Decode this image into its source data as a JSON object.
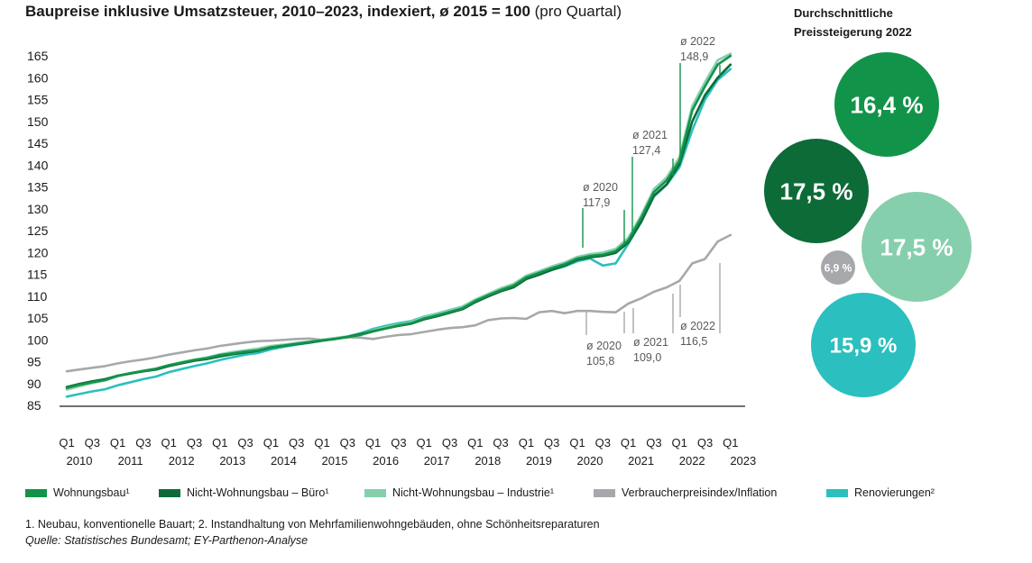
{
  "header": {
    "title_bold": "Baupreise inklusive Umsatzsteuer, 2010–2023, indexiert, ø 2015 = 100",
    "title_normal": "(pro Quartal)"
  },
  "side_panel": {
    "title_line1": "Durchschnittliche",
    "title_line2": "Preissteigerung 2022",
    "bubbles": [
      {
        "label": "16,4 %",
        "value": 16.4,
        "color": "#12934a"
      },
      {
        "label": "17,5 %",
        "value": 17.5,
        "color": "#0d6b38"
      },
      {
        "label": "17,5 %",
        "value": 17.5,
        "color": "#86cfac"
      },
      {
        "label": "6,9 %",
        "value": 6.9,
        "color": "#a6a8ab"
      },
      {
        "label": "15,9 %",
        "value": 15.9,
        "color": "#2bbfbf"
      }
    ]
  },
  "chart_data": {
    "type": "line",
    "y_ticks": [
      85,
      90,
      95,
      100,
      105,
      110,
      115,
      120,
      125,
      130,
      135,
      140,
      145,
      150,
      155,
      160,
      165
    ],
    "ylim": [
      85,
      165
    ],
    "x_quarter_labels": [
      "Q1",
      "Q3",
      "Q1",
      "Q3",
      "Q1",
      "Q3",
      "Q1",
      "Q3",
      "Q1",
      "Q3",
      "Q1",
      "Q3",
      "Q1",
      "Q3",
      "Q1",
      "Q3",
      "Q1",
      "Q3",
      "Q1",
      "Q3",
      "Q1",
      "Q3",
      "Q1",
      "Q3",
      "Q1",
      "Q3",
      "Q1"
    ],
    "x_year_labels": [
      "2010",
      "2011",
      "2012",
      "2013",
      "2014",
      "2015",
      "2016",
      "2017",
      "2018",
      "2019",
      "2020",
      "2021",
      "2022",
      "2023"
    ],
    "grid": false,
    "series": [
      {
        "name": "Wohnungsbau¹",
        "color": "#12934a",
        "values": [
          89.0,
          89.7,
          90.3,
          90.8,
          91.8,
          92.4,
          92.9,
          93.4,
          94.2,
          94.8,
          95.4,
          95.8,
          96.5,
          96.9,
          97.3,
          97.6,
          98.3,
          98.7,
          99.1,
          99.5,
          99.9,
          100.2,
          100.6,
          101.1,
          101.9,
          102.6,
          103.3,
          103.8,
          104.9,
          105.6,
          106.4,
          107.2,
          108.9,
          110.2,
          111.4,
          112.4,
          114.3,
          115.3,
          116.4,
          117.3,
          118.6,
          119.2,
          119.5,
          120.3,
          122.8,
          127.9,
          133.8,
          136.5,
          141.0,
          152.5,
          158.0,
          163.0,
          165.0
        ]
      },
      {
        "name": "Nicht-Wohnungsbau – Büro¹",
        "color": "#0d6b38",
        "values": [
          89.2,
          89.9,
          90.5,
          91.0,
          91.8,
          92.3,
          92.8,
          93.2,
          94.0,
          94.6,
          95.2,
          95.6,
          96.2,
          96.7,
          97.1,
          97.5,
          98.2,
          98.6,
          99.0,
          99.4,
          99.8,
          100.2,
          100.7,
          101.3,
          102.0,
          102.6,
          103.2,
          103.7,
          104.7,
          105.4,
          106.2,
          107.0,
          108.6,
          109.9,
          111.1,
          112.0,
          113.9,
          114.9,
          116.0,
          117.0,
          118.3,
          118.9,
          119.2,
          119.9,
          122.3,
          127.0,
          133.0,
          135.6,
          140.2,
          150.0,
          156.0,
          160.0,
          163.0
        ]
      },
      {
        "name": "Nicht-Wohnungsbau – Industrie¹",
        "color": "#86cfac",
        "values": [
          88.6,
          89.4,
          90.1,
          90.7,
          91.6,
          92.3,
          92.9,
          93.4,
          94.2,
          94.9,
          95.5,
          96.0,
          96.7,
          97.2,
          97.6,
          98.0,
          98.6,
          98.9,
          99.3,
          99.6,
          100.0,
          100.4,
          100.8,
          101.3,
          102.2,
          102.9,
          103.5,
          104.1,
          105.2,
          105.9,
          106.7,
          107.5,
          109.2,
          110.5,
          111.8,
          112.8,
          114.7,
          115.7,
          116.8,
          117.7,
          119.0,
          119.6,
          120.0,
          120.8,
          123.4,
          128.5,
          134.5,
          137.2,
          141.8,
          153.5,
          159.0,
          164.0,
          165.5
        ]
      },
      {
        "name": "Verbraucherpreisindex/Inflation",
        "color": "#a6a8ab",
        "values": [
          92.8,
          93.2,
          93.6,
          94.0,
          94.6,
          95.1,
          95.5,
          96.0,
          96.6,
          97.1,
          97.6,
          98.0,
          98.6,
          99.0,
          99.4,
          99.7,
          99.8,
          100.0,
          100.2,
          100.3,
          100.0,
          100.4,
          100.6,
          100.5,
          100.2,
          100.7,
          101.1,
          101.3,
          101.8,
          102.3,
          102.7,
          102.9,
          103.3,
          104.5,
          104.9,
          105.0,
          104.8,
          106.3,
          106.6,
          106.1,
          106.6,
          106.6,
          106.4,
          106.3,
          108.3,
          109.5,
          111.0,
          112.0,
          113.5,
          117.5,
          118.5,
          122.5,
          124.0
        ]
      },
      {
        "name": "Renovierungen²",
        "color": "#2bbfbf",
        "values": [
          87.0,
          87.6,
          88.2,
          88.7,
          89.6,
          90.3,
          91.0,
          91.6,
          92.6,
          93.3,
          94.0,
          94.6,
          95.4,
          96.0,
          96.6,
          97.0,
          97.8,
          98.4,
          98.9,
          99.3,
          99.8,
          100.2,
          100.8,
          101.5,
          102.5,
          103.2,
          103.8,
          104.3,
          105.3,
          106.0,
          106.8,
          107.6,
          109.2,
          110.4,
          111.6,
          112.5,
          114.2,
          115.1,
          116.0,
          116.8,
          118.0,
          118.6,
          117.0,
          117.5,
          122.0,
          127.0,
          132.8,
          135.5,
          139.5,
          148.0,
          155.0,
          159.5,
          162.0
        ]
      }
    ],
    "annotations_top": [
      {
        "line1": "ø 2020",
        "line2": "117,9"
      },
      {
        "line1": "ø 2021",
        "line2": "127,4"
      },
      {
        "line1": "ø 2022",
        "line2": "148,9"
      }
    ],
    "annotations_bottom": [
      {
        "line1": "ø 2020",
        "line2": "105,8"
      },
      {
        "line1": "ø 2021",
        "line2": "109,0"
      },
      {
        "line1": "ø 2022",
        "line2": "116,5"
      }
    ]
  },
  "legend": [
    {
      "label": "Wohnungsbau¹",
      "color": "#12934a"
    },
    {
      "label": "Nicht-Wohnungsbau – Büro¹",
      "color": "#0d6b38"
    },
    {
      "label": "Nicht-Wohnungsbau – Industrie¹",
      "color": "#86cfac"
    },
    {
      "label": "Verbraucherpreisindex/Inflation",
      "color": "#a6a8ab"
    },
    {
      "label": "Renovierungen²",
      "color": "#2bbfbf"
    }
  ],
  "footer": {
    "footnote": "1. Neubau, konventionelle Bauart; 2. Instandhaltung von Mehrfamilienwohngebäuden, ohne Schönheitsreparaturen",
    "source": "Quelle: Statistisches Bundesamt; EY-Parthenon-Analyse"
  }
}
